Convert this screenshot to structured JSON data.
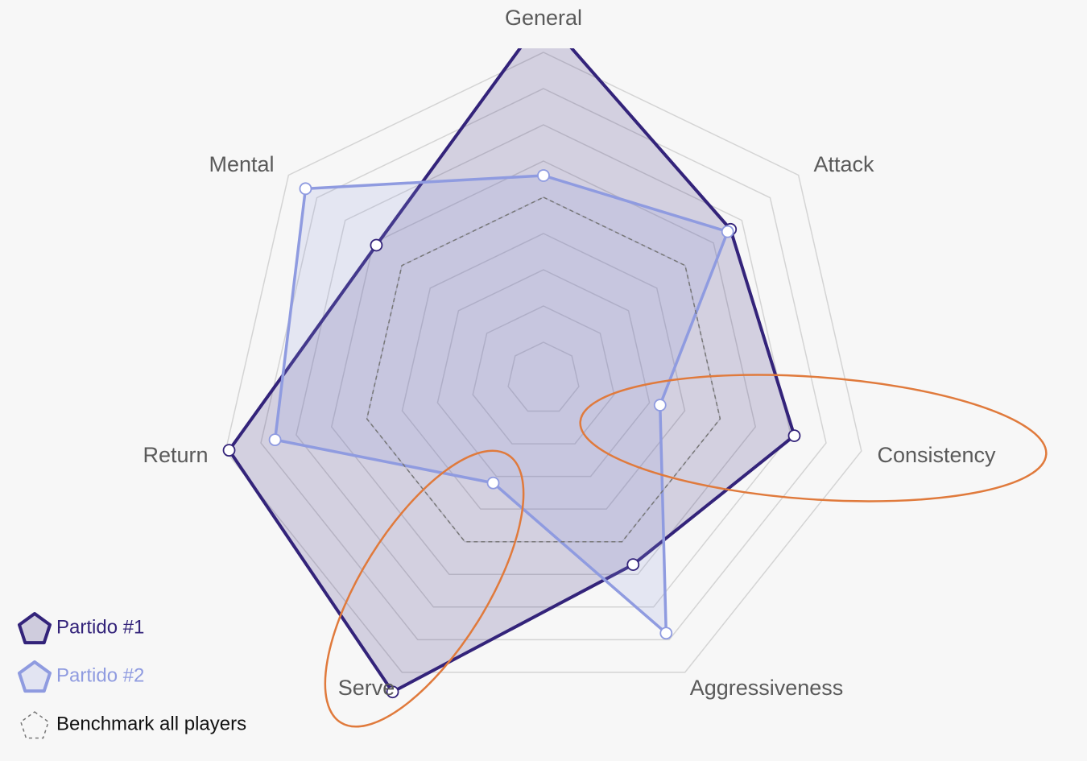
{
  "chart_data": {
    "type": "radar",
    "categories": [
      "General",
      "Attack",
      "Consistency",
      "Aggressiveness",
      "Serve",
      "Return",
      "Mental"
    ],
    "rlim": [
      0,
      100
    ],
    "rticks": [
      10,
      20,
      30,
      40,
      50,
      60,
      70,
      80,
      90
    ],
    "grid": true,
    "legend": "bottom-left",
    "series": [
      {
        "name": "Partido #1",
        "color": "#33237a",
        "values": [
          100,
          66,
          71,
          57,
          96,
          89,
          59
        ]
      },
      {
        "name": "Partido #2",
        "color": "#8f9be0",
        "values": [
          56,
          65,
          33,
          78,
          32,
          76,
          84
        ]
      },
      {
        "name": "Benchmark all players",
        "color": "#777777",
        "dashed": true,
        "values": [
          50,
          50,
          50,
          50,
          50,
          50,
          50
        ]
      }
    ]
  }
}
